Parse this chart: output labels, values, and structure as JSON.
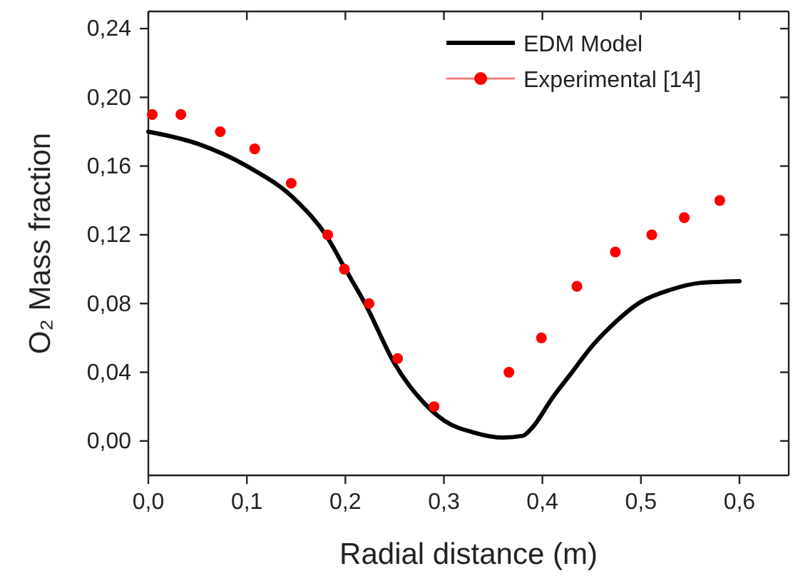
{
  "chart_data": {
    "type": "line",
    "xlabel": "Radial distance (m)",
    "ylabel": "O₂ Mass fraction",
    "xlim": [
      0,
      0.65
    ],
    "ylim": [
      -0.02,
      0.25
    ],
    "xticks": [
      {
        "value": 0,
        "label": "0,0"
      },
      {
        "value": 0.1,
        "label": "0,1"
      },
      {
        "value": 0.2,
        "label": "0,2"
      },
      {
        "value": 0.3,
        "label": "0,3"
      },
      {
        "value": 0.4,
        "label": "0,4"
      },
      {
        "value": 0.5,
        "label": "0,5"
      },
      {
        "value": 0.6,
        "label": "0,6"
      }
    ],
    "yticks": [
      {
        "value": 0,
        "label": "0,00"
      },
      {
        "value": 0.04,
        "label": "0,04"
      },
      {
        "value": 0.08,
        "label": "0,08"
      },
      {
        "value": 0.12,
        "label": "0,12"
      },
      {
        "value": 0.16,
        "label": "0,16"
      },
      {
        "value": 0.2,
        "label": "0,20"
      },
      {
        "value": 0.24,
        "label": "0,24"
      }
    ],
    "grid": false,
    "legend": "top right",
    "series": [
      {
        "name": "EDM Model",
        "color": "#000000",
        "marker": "none",
        "line_style": "solid",
        "x": [
          0,
          0.05,
          0.1,
          0.15,
          0.18,
          0.2,
          0.22,
          0.25,
          0.28,
          0.3,
          0.33,
          0.36,
          0.38,
          0.39,
          0.41,
          0.43,
          0.45,
          0.47,
          0.5,
          0.53,
          0.56,
          0.6
        ],
        "values": [
          0.18,
          0.173,
          0.16,
          0.14,
          0.12,
          0.1,
          0.08,
          0.045,
          0.022,
          0.012,
          0.005,
          0.002,
          0.003,
          0.008,
          0.025,
          0.04,
          0.055,
          0.067,
          0.081,
          0.088,
          0.092,
          0.093
        ]
      },
      {
        "name": "Experimental [14]",
        "type": "scatter",
        "color": "#ff0000",
        "marker": "circle",
        "x": [
          0.004,
          0.033,
          0.073,
          0.108,
          0.145,
          0.182,
          0.199,
          0.224,
          0.253,
          0.29,
          0.366,
          0.399,
          0.435,
          0.474,
          0.511,
          0.544,
          0.58
        ],
        "values": [
          0.19,
          0.19,
          0.18,
          0.17,
          0.15,
          0.12,
          0.1,
          0.08,
          0.048,
          0.02,
          0.04,
          0.06,
          0.09,
          0.11,
          0.12,
          0.13,
          0.14
        ]
      }
    ]
  }
}
